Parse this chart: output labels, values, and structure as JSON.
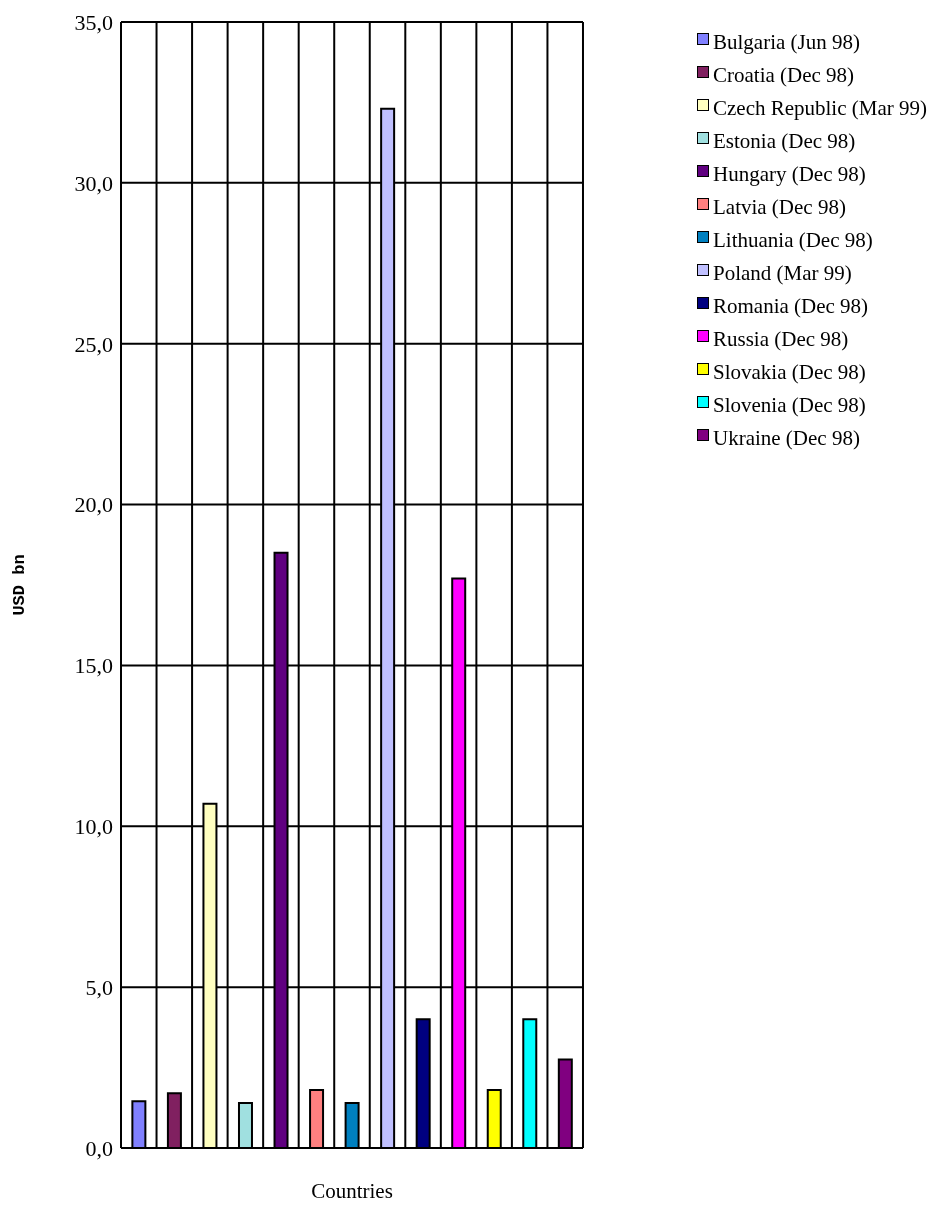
{
  "chart_data": {
    "type": "bar",
    "xlabel": "Countries",
    "ylabel": "USD bn",
    "categories": [
      null,
      null,
      null,
      null,
      null,
      null,
      null,
      null,
      null,
      null,
      null,
      null,
      null
    ],
    "series": [
      {
        "name": "Bulgaria (Jun 98)",
        "color": "#8080ff",
        "values": [
          1.45,
          null,
          null,
          null,
          null,
          null,
          null,
          null,
          null,
          null,
          null,
          null,
          null
        ]
      },
      {
        "name": "Croatia (Dec 98)",
        "color": "#802060",
        "values": [
          null,
          1.7,
          null,
          null,
          null,
          null,
          null,
          null,
          null,
          null,
          null,
          null,
          null
        ]
      },
      {
        "name": "Czech Republic (Mar 99)",
        "color": "#ffffc0",
        "values": [
          null,
          null,
          10.7,
          null,
          null,
          null,
          null,
          null,
          null,
          null,
          null,
          null,
          null
        ]
      },
      {
        "name": "Estonia (Dec 98)",
        "color": "#a0e0e0",
        "values": [
          null,
          null,
          null,
          1.4,
          null,
          null,
          null,
          null,
          null,
          null,
          null,
          null,
          null
        ]
      },
      {
        "name": "Hungary (Dec 98)",
        "color": "#600080",
        "values": [
          null,
          null,
          null,
          null,
          18.5,
          null,
          null,
          null,
          null,
          null,
          null,
          null,
          null
        ]
      },
      {
        "name": "Latvia (Dec 98)",
        "color": "#ff8080",
        "values": [
          null,
          null,
          null,
          null,
          null,
          1.8,
          null,
          null,
          null,
          null,
          null,
          null,
          null
        ]
      },
      {
        "name": "Lithuania (Dec 98)",
        "color": "#0080c0",
        "values": [
          null,
          null,
          null,
          null,
          null,
          null,
          1.4,
          null,
          null,
          null,
          null,
          null,
          null
        ]
      },
      {
        "name": "Poland (Mar 99)",
        "color": "#c0c0ff",
        "values": [
          null,
          null,
          null,
          null,
          null,
          null,
          null,
          32.3,
          null,
          null,
          null,
          null,
          null
        ]
      },
      {
        "name": "Romania (Dec 98)",
        "color": "#000080",
        "values": [
          null,
          null,
          null,
          null,
          null,
          null,
          null,
          null,
          4.0,
          null,
          null,
          null,
          null
        ]
      },
      {
        "name": "Russia (Dec 98)",
        "color": "#ff00ff",
        "values": [
          null,
          null,
          null,
          null,
          null,
          null,
          null,
          null,
          null,
          17.7,
          null,
          null,
          null
        ]
      },
      {
        "name": "Slovakia (Dec 98)",
        "color": "#ffff00",
        "values": [
          null,
          null,
          null,
          null,
          null,
          null,
          null,
          null,
          null,
          null,
          1.8,
          null,
          null
        ]
      },
      {
        "name": "Slovenia (Dec 98)",
        "color": "#00ffff",
        "values": [
          null,
          null,
          null,
          null,
          null,
          null,
          null,
          null,
          null,
          null,
          null,
          4.0,
          null
        ]
      },
      {
        "name": "Ukraine (Dec 98)",
        "color": "#800080",
        "values": [
          null,
          null,
          null,
          null,
          null,
          null,
          null,
          null,
          null,
          null,
          null,
          null,
          2.75
        ]
      }
    ],
    "ylim": [
      0,
      35
    ],
    "yticks": [
      {
        "value": 0,
        "label": "0,0"
      },
      {
        "value": 5,
        "label": "5,0"
      },
      {
        "value": 10,
        "label": "10,0"
      },
      {
        "value": 15,
        "label": "15,0"
      },
      {
        "value": 20,
        "label": "20,0"
      },
      {
        "value": 25,
        "label": "25,0"
      },
      {
        "value": 30,
        "label": "30,0"
      },
      {
        "value": 35,
        "label": "35,0"
      }
    ],
    "grid": true,
    "legend": "top right"
  }
}
